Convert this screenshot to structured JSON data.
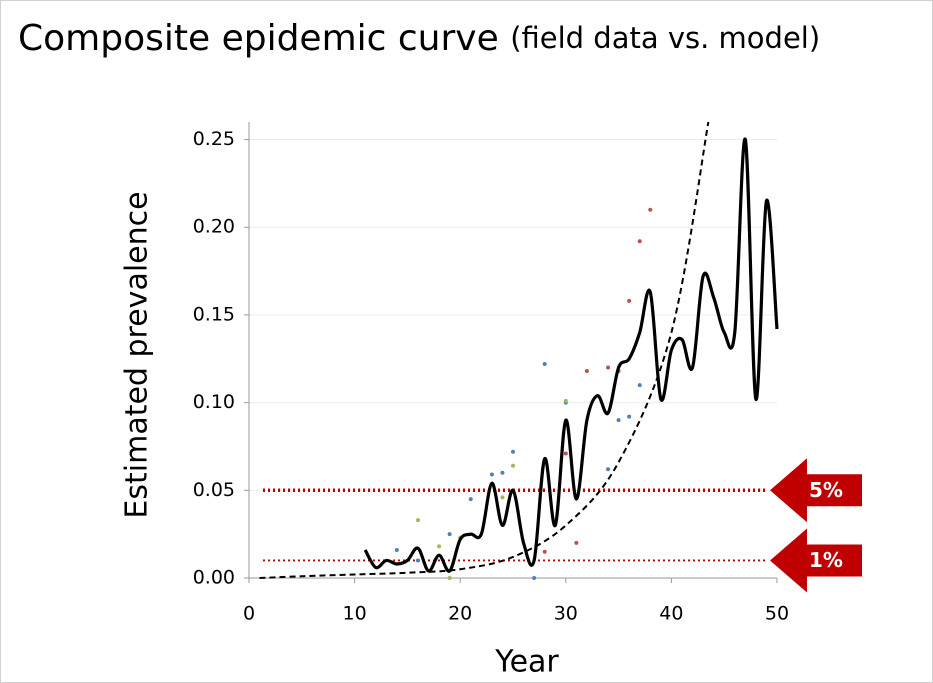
{
  "chart_data": {
    "type": "line",
    "title": "Composite epidemic curve",
    "subtitle": "(field data vs. model)",
    "xlabel": "Year",
    "ylabel": "Estimated prevalence",
    "xlim": [
      0,
      50
    ],
    "ylim": [
      0,
      0.26
    ],
    "xticks": [
      0,
      10,
      20,
      30,
      40,
      50
    ],
    "yticks": [
      {
        "value": 0,
        "label": "0.00"
      },
      {
        "value": 0.05,
        "label": "0.05"
      },
      {
        "value": 0.1,
        "label": "0.10"
      },
      {
        "value": 0.15,
        "label": "0.15"
      },
      {
        "value": 0.2,
        "label": "0.20"
      },
      {
        "value": 0.25,
        "label": "0.25"
      }
    ],
    "grid": true,
    "series": [
      {
        "color": "#000000",
        "style": "solid",
        "smooth": true,
        "x": [
          11,
          12,
          13,
          14,
          15,
          16,
          17,
          18,
          19,
          20,
          21,
          22,
          23,
          24,
          25,
          26,
          27,
          28,
          29,
          30,
          31,
          32,
          33,
          34,
          35,
          36,
          37,
          38,
          39,
          40,
          41,
          42,
          43,
          44,
          45,
          46,
          47,
          48,
          49,
          50
        ],
        "values": [
          0.016,
          0.006,
          0.01,
          0.008,
          0.01,
          0.017,
          0.004,
          0.013,
          0.004,
          0.022,
          0.025,
          0.025,
          0.054,
          0.03,
          0.05,
          0.02,
          0.01,
          0.068,
          0.03,
          0.09,
          0.045,
          0.09,
          0.104,
          0.094,
          0.12,
          0.125,
          0.14,
          0.163,
          0.102,
          0.13,
          0.136,
          0.12,
          0.172,
          0.16,
          0.14,
          0.14,
          0.25,
          0.102,
          0.215,
          0.142
        ]
      },
      {
        "color": "#000000",
        "style": "dashed",
        "smooth": true,
        "x": [
          1,
          5,
          10,
          15,
          20,
          25,
          30,
          35,
          40,
          43.5
        ],
        "values": [
          0,
          0.001,
          0.002,
          0.003,
          0.005,
          0.012,
          0.03,
          0.066,
          0.14,
          0.26
        ]
      }
    ],
    "scatter": [
      {
        "color": "#4f81bd",
        "x": [
          28,
          30,
          25,
          24,
          23,
          21,
          16,
          14,
          27,
          34,
          37,
          36,
          19,
          35
        ],
        "values": [
          0.122,
          0.1,
          0.072,
          0.06,
          0.059,
          0.045,
          0.01,
          0.016,
          0.0,
          0.062,
          0.11,
          0.092,
          0.025,
          0.09
        ]
      },
      {
        "color": "#c0504d",
        "x": [
          38,
          37,
          36,
          34,
          32,
          31,
          28,
          30,
          35
        ],
        "values": [
          0.21,
          0.192,
          0.158,
          0.12,
          0.118,
          0.02,
          0.015,
          0.071,
          0.118
        ]
      },
      {
        "color": "#9bbb59",
        "x": [
          16,
          18,
          25,
          24,
          20,
          19,
          30
        ],
        "values": [
          0.033,
          0.018,
          0.064,
          0.046,
          0.023,
          0.0,
          0.101
        ]
      }
    ],
    "reference_lines": [
      {
        "value": 0.05,
        "label": "5%",
        "color": "#c00000",
        "width": 3.5
      },
      {
        "value": 0.01,
        "label": "1%",
        "color": "#c00000",
        "width": 1.8
      }
    ]
  }
}
